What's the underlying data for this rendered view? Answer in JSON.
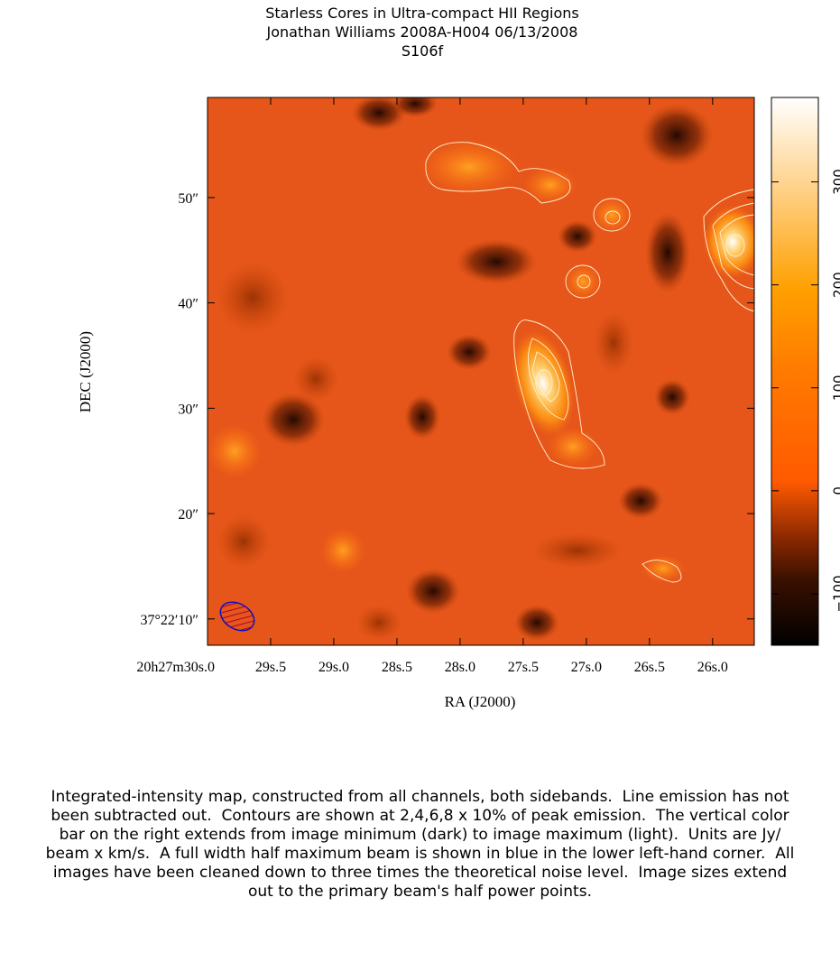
{
  "chart_data": {
    "type": "image",
    "title": [
      "Starless Cores in Ultra-compact HII Regions",
      "Jonathan Williams   2008A-H004   06/13/2008",
      "S106f"
    ],
    "xlabel": "RA  (J2000)",
    "ylabel": "DEC  (J2000)",
    "xlim": [
      30.0,
      25.67
    ],
    "ylim": [
      7.5,
      59.5
    ],
    "xticks": [
      {
        "value": 30.0,
        "label": "20h27m30s.0"
      },
      {
        "value": 29.5,
        "label": "29s.5"
      },
      {
        "value": 29.0,
        "label": "29s.0"
      },
      {
        "value": 28.5,
        "label": "28s.5"
      },
      {
        "value": 28.0,
        "label": "28s.0"
      },
      {
        "value": 27.5,
        "label": "27s.5"
      },
      {
        "value": 27.0,
        "label": "27s.0"
      },
      {
        "value": 26.5,
        "label": "26s.5"
      },
      {
        "value": 26.0,
        "label": "26s.0"
      }
    ],
    "yticks": [
      {
        "value": 10,
        "label": "37°22′10″"
      },
      {
        "value": 20,
        "label": "20″"
      },
      {
        "value": 30,
        "label": "30″"
      },
      {
        "value": 40,
        "label": "40″"
      },
      {
        "value": 50,
        "label": "50″"
      }
    ],
    "clim": [
      -150,
      382
    ],
    "cticks": [
      {
        "value": -100,
        "label": "−100"
      },
      0,
      100,
      200,
      300
    ],
    "caption": [
      "Integrated-intensity map, constructed from all channels, both sidebands.  Line emission has not",
      "been subtracted out.  Contours are shown at 2,4,6,8 x 10% of peak emission.  The vertical color",
      "bar on the right extends from image minimum (dark) to image maximum (light).  Units are Jy/",
      "beam x km/s.  A full width half maximum beam is shown in blue in the lower left-hand corner.  All",
      "images have been cleaned down to three times the theoretical noise level.  Image sizes extend",
      "out to the primary beam's half power points."
    ]
  }
}
